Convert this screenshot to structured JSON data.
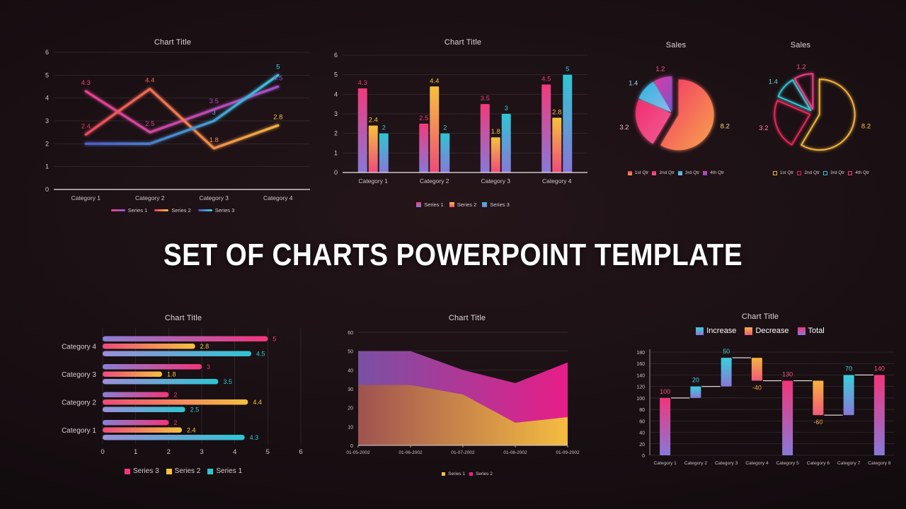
{
  "slide": {
    "title": "SET OF CHARTS POWERPOINT TEMPLATE",
    "background": "#170f12"
  },
  "chart_data": [
    {
      "id": "line-chart",
      "type": "line",
      "title": "Chart Title",
      "categories": [
        "Category 1",
        "Category 2",
        "Category 3",
        "Category 4"
      ],
      "ylim": [
        0,
        6
      ],
      "ystep": 1,
      "grid": true,
      "legend_position": "bottom",
      "series": [
        {
          "name": "Series 1",
          "values": [
            4.3,
            2.5,
            3.5,
            4.5
          ],
          "labels": [
            "4.3",
            "2.5",
            "3.5",
            "4.5"
          ],
          "color_start": "#f43e80",
          "color_end": "#9256d6"
        },
        {
          "name": "Series 2",
          "values": [
            2.4,
            4.4,
            1.8,
            2.8
          ],
          "labels": [
            "2.4",
            "4.4",
            "1.8",
            "2.8"
          ],
          "color_start": "#e8395f",
          "color_end": "#f6c13e"
        },
        {
          "name": "Series 3",
          "values": [
            2,
            2,
            3,
            5
          ],
          "labels": [
            "",
            "",
            "3",
            "5"
          ],
          "color_start": "#544cc0",
          "color_end": "#38d4de"
        }
      ]
    },
    {
      "id": "column-chart",
      "type": "bar",
      "title": "Chart Title",
      "categories": [
        "Category 1",
        "Category 2",
        "Category 3",
        "Category 4"
      ],
      "ylim": [
        0,
        6
      ],
      "ystep": 1,
      "grid": true,
      "legend_position": "bottom",
      "series": [
        {
          "name": "Series 1",
          "values": [
            4.3,
            2.5,
            3.5,
            4.5
          ],
          "labels": [
            "4.3",
            "2.5",
            "3.5",
            "4.5"
          ],
          "color_top": "#f23a7b",
          "color_bottom": "#8878d8"
        },
        {
          "name": "Series 2",
          "values": [
            2.4,
            4.4,
            1.8,
            2.8
          ],
          "labels": [
            "2.4",
            "4.4",
            "1.8",
            "2.8"
          ],
          "color_top": "#f6c13e",
          "color_bottom": "#ee4b7a"
        },
        {
          "name": "Series 3",
          "values": [
            2,
            2,
            3,
            5
          ],
          "labels": [
            "2",
            "2",
            "3",
            "5"
          ],
          "color_top": "#2ec5d3",
          "color_bottom": "#8878d8"
        }
      ]
    },
    {
      "id": "pie-filled",
      "type": "pie",
      "title": "Sales",
      "style": "filled",
      "labels": [
        "1st Qtr",
        "2nd Qtr",
        "3rd Qtr",
        "4th Qtr"
      ],
      "values": [
        8.2,
        3.2,
        1.4,
        1.2
      ],
      "value_labels": [
        "8.2",
        "3.2",
        "1.4",
        "1.2"
      ],
      "slice_colors": [
        [
          "#f23566",
          "#f8a44c"
        ],
        [
          "#f02d6e",
          "#f25f95"
        ],
        [
          "#2ab4dc",
          "#90b9ee"
        ],
        [
          "#e03aa0",
          "#7c52cc"
        ]
      ],
      "label_colors": [
        "#f2d08a",
        "#f0b8c8",
        "#9fd8ec",
        "#f25a80"
      ],
      "explode": [
        9,
        2,
        2,
        2
      ]
    },
    {
      "id": "pie-outline",
      "type": "pie",
      "title": "Sales",
      "style": "outline",
      "labels": [
        "1st Qtr",
        "2nd Qtr",
        "3rd Qtr",
        "4th Qtr"
      ],
      "values": [
        8.2,
        3.2,
        1.4,
        1.2
      ],
      "value_labels": [
        "8.2",
        "3.2",
        "1.4",
        "1.2"
      ],
      "stroke_colors": [
        "#f2b33e",
        "#e82558",
        "#2ec5d3",
        "#f23a84"
      ],
      "label_colors": [
        "#f6c13e",
        "#f08aa0",
        "#5ad4dc",
        "#f25a80"
      ],
      "explode": [
        8,
        6,
        6,
        6
      ]
    },
    {
      "id": "hbar-chart",
      "type": "bar-horizontal",
      "title": "Chart Title",
      "categories": [
        "Category 1",
        "Category 2",
        "Category 3",
        "Category 4"
      ],
      "xlim": [
        0,
        6
      ],
      "xstep": 1,
      "grid": true,
      "series": [
        {
          "name": "Series 3",
          "values": [
            2,
            2,
            3,
            5
          ],
          "labels": [
            "2",
            "2",
            "3",
            "5"
          ],
          "color_start": "#8a7fd5",
          "color_end": "#f2357b"
        },
        {
          "name": "Series 2",
          "values": [
            2.4,
            4.4,
            1.8,
            2.8
          ],
          "labels": [
            "2.4",
            "4.4",
            "1.8",
            "2.8"
          ],
          "color_start": "#ee4b7a",
          "color_end": "#f6c13e"
        },
        {
          "name": "Series 1",
          "values": [
            4.3,
            2.5,
            3.5,
            4.5
          ],
          "labels": [
            "4.3",
            "2.5",
            "3.5",
            "4.5"
          ],
          "color_start": "#9b8fd8",
          "color_end": "#2ec5d3"
        }
      ]
    },
    {
      "id": "area-chart",
      "type": "area",
      "title": "Chart Title",
      "x": [
        "01-05-2002",
        "01-06-2002",
        "01-07-2002",
        "01-08-2002",
        "01-09-2002"
      ],
      "ylim": [
        0,
        60
      ],
      "ystep": 10,
      "grid": true,
      "series": [
        {
          "name": "Series 2",
          "values": [
            50,
            50,
            40,
            33,
            44
          ],
          "color_start": "#7b52a8",
          "color_end": "#ee1e8c"
        },
        {
          "name": "Series 1",
          "values": [
            32,
            32,
            27,
            12,
            15
          ],
          "color_start": "#a0524e",
          "color_end": "#f6c13e"
        }
      ],
      "legend_order": [
        "Series 1",
        "Series 2"
      ],
      "legend_colors": [
        "#f6c13e",
        "#ee1e8c"
      ]
    },
    {
      "id": "waterfall-chart",
      "type": "waterfall",
      "title": "Chart Title",
      "categories": [
        "Category 1",
        "Category 2",
        "Category 3",
        "Category 4",
        "Category 5",
        "Category 6",
        "Category 7",
        "Category 8"
      ],
      "ylim": [
        0,
        180
      ],
      "ystep": 20,
      "grid": true,
      "legend": [
        "Increase",
        "Decrease",
        "Total"
      ],
      "bars": [
        {
          "kind": "total",
          "start": 0,
          "end": 100,
          "label": "100"
        },
        {
          "kind": "increase",
          "start": 100,
          "end": 120,
          "label": "20"
        },
        {
          "kind": "increase",
          "start": 120,
          "end": 170,
          "label": "50"
        },
        {
          "kind": "decrease",
          "start": 170,
          "end": 130,
          "label": "-40"
        },
        {
          "kind": "total",
          "start": 0,
          "end": 130,
          "label": "130"
        },
        {
          "kind": "decrease",
          "start": 130,
          "end": 70,
          "label": "-60"
        },
        {
          "kind": "increase",
          "start": 70,
          "end": 140,
          "label": "70"
        },
        {
          "kind": "total",
          "start": 0,
          "end": 140,
          "label": "140"
        }
      ],
      "kind_colors": {
        "increase": [
          "#38d0dc",
          "#8878d8"
        ],
        "decrease": [
          "#f6b33e",
          "#f05a7a"
        ],
        "total": [
          "#f2357b",
          "#8878d8"
        ]
      },
      "label_colors": {
        "increase": "#45d0da",
        "decrease": "#f6a53e",
        "total": "#f4538a"
      }
    }
  ]
}
